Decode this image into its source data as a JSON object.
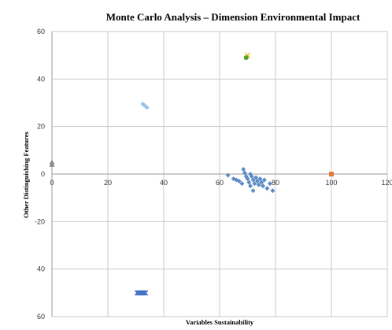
{
  "chart_data": {
    "type": "scatter",
    "title": "Monte Carlo Analysis – Dimension Environmental Impact",
    "xlabel": "Variables Sustainability",
    "ylabel": "Other Distinguishing Features",
    "xlim": [
      0,
      120
    ],
    "ylim": [
      -60,
      60
    ],
    "x_ticks": [
      0,
      20,
      40,
      60,
      80,
      100,
      120
    ],
    "y_ticks": [
      60,
      40,
      20,
      0,
      -20,
      40,
      60
    ],
    "y_tick_labels": [
      "60",
      "40",
      "20",
      "0",
      "-20",
      "40",
      "60"
    ],
    "x_tick_labels": [
      "0",
      "20",
      "40",
      "60",
      "80",
      "100",
      "120"
    ],
    "grid": true,
    "legend": "none",
    "series": [
      {
        "color": "#5b8cc4",
        "marker": "diamond",
        "points": [
          [
            63,
            -0.5
          ],
          [
            65,
            -2
          ],
          [
            66,
            -2.5
          ],
          [
            67,
            -3
          ],
          [
            68,
            -4
          ],
          [
            68.5,
            2
          ],
          [
            69,
            0.5
          ],
          [
            69.5,
            -1
          ],
          [
            70,
            -2
          ],
          [
            70.5,
            -3.5
          ],
          [
            71,
            -5
          ],
          [
            71,
            0
          ],
          [
            71.5,
            -1
          ],
          [
            72,
            -7
          ],
          [
            72,
            -2.5
          ],
          [
            72.5,
            -4
          ],
          [
            73,
            -1.5
          ],
          [
            73.5,
            -3
          ],
          [
            74,
            -4.5
          ],
          [
            74.5,
            -2
          ],
          [
            75,
            -3.5
          ],
          [
            75.5,
            -5
          ],
          [
            76,
            -2.5
          ],
          [
            77,
            -6
          ],
          [
            78,
            -4
          ],
          [
            79,
            -7
          ]
        ]
      },
      {
        "color": "#9dc3e6",
        "marker": "diamond",
        "points": [
          [
            32.5,
            29.5
          ],
          [
            33,
            29
          ],
          [
            33.5,
            28.5
          ],
          [
            34,
            28
          ]
        ]
      },
      {
        "color": "#e07b39",
        "marker": "square",
        "points": [
          [
            100,
            0
          ]
        ]
      },
      {
        "color": "#8c8c8c",
        "marker": "triangle",
        "points": [
          [
            0,
            5
          ],
          [
            0,
            4
          ]
        ]
      },
      {
        "color": "#f0c419",
        "marker": "x",
        "points": [
          [
            70,
            50
          ]
        ]
      },
      {
        "color": "#5aa02c",
        "marker": "circle",
        "points": [
          [
            69.5,
            49
          ]
        ]
      },
      {
        "color": "#4472c4",
        "marker": "cross",
        "points": [
          [
            30.5,
            -50
          ],
          [
            31,
            -50
          ],
          [
            31.5,
            -50
          ],
          [
            32,
            -50
          ],
          [
            32.5,
            -50
          ],
          [
            33,
            -50
          ],
          [
            33.5,
            -50
          ]
        ]
      }
    ]
  }
}
